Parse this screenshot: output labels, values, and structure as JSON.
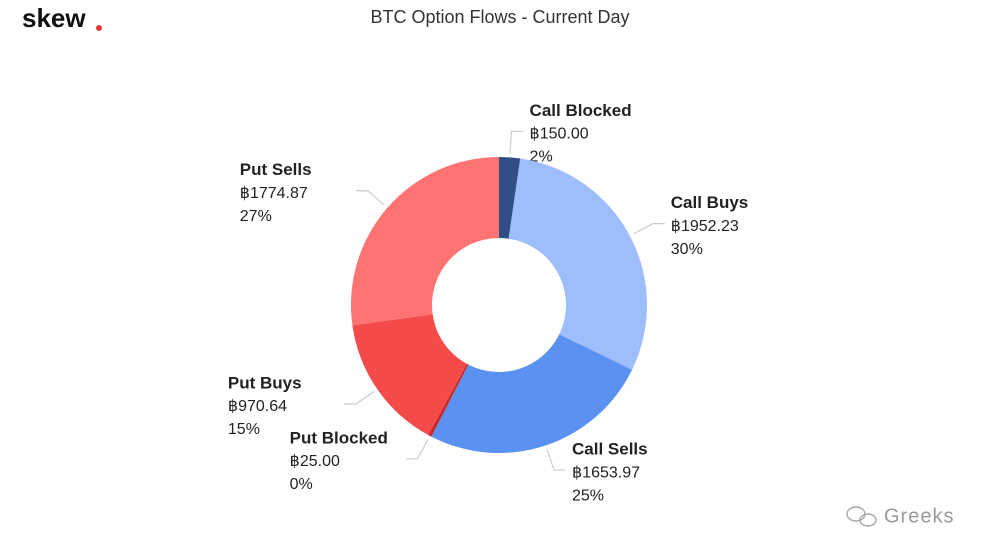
{
  "brand": "skew",
  "watermark": "Greeks",
  "chart_data": {
    "type": "donut",
    "title": "BTC Option Flows - Current Day",
    "categories": [
      "Call Blocked",
      "Call Buys",
      "Call Sells",
      "Put Blocked",
      "Put Buys",
      "Put Sells"
    ],
    "values": [
      150.0,
      1952.23,
      1653.97,
      25.0,
      970.64,
      1774.87
    ],
    "value_labels": [
      "฿150.00",
      "฿1952.23",
      "฿1653.97",
      "฿25.00",
      "฿970.64",
      "฿1774.87"
    ],
    "percents": [
      2,
      30,
      25,
      0,
      15,
      27
    ],
    "percent_labels": [
      "2%",
      "30%",
      "25%",
      "0%",
      "15%",
      "27%"
    ],
    "colors": [
      "#2f4f86",
      "#9dbdfc",
      "#5b91f0",
      "#c62828",
      "#f44a4a",
      "#ff7373"
    ]
  }
}
